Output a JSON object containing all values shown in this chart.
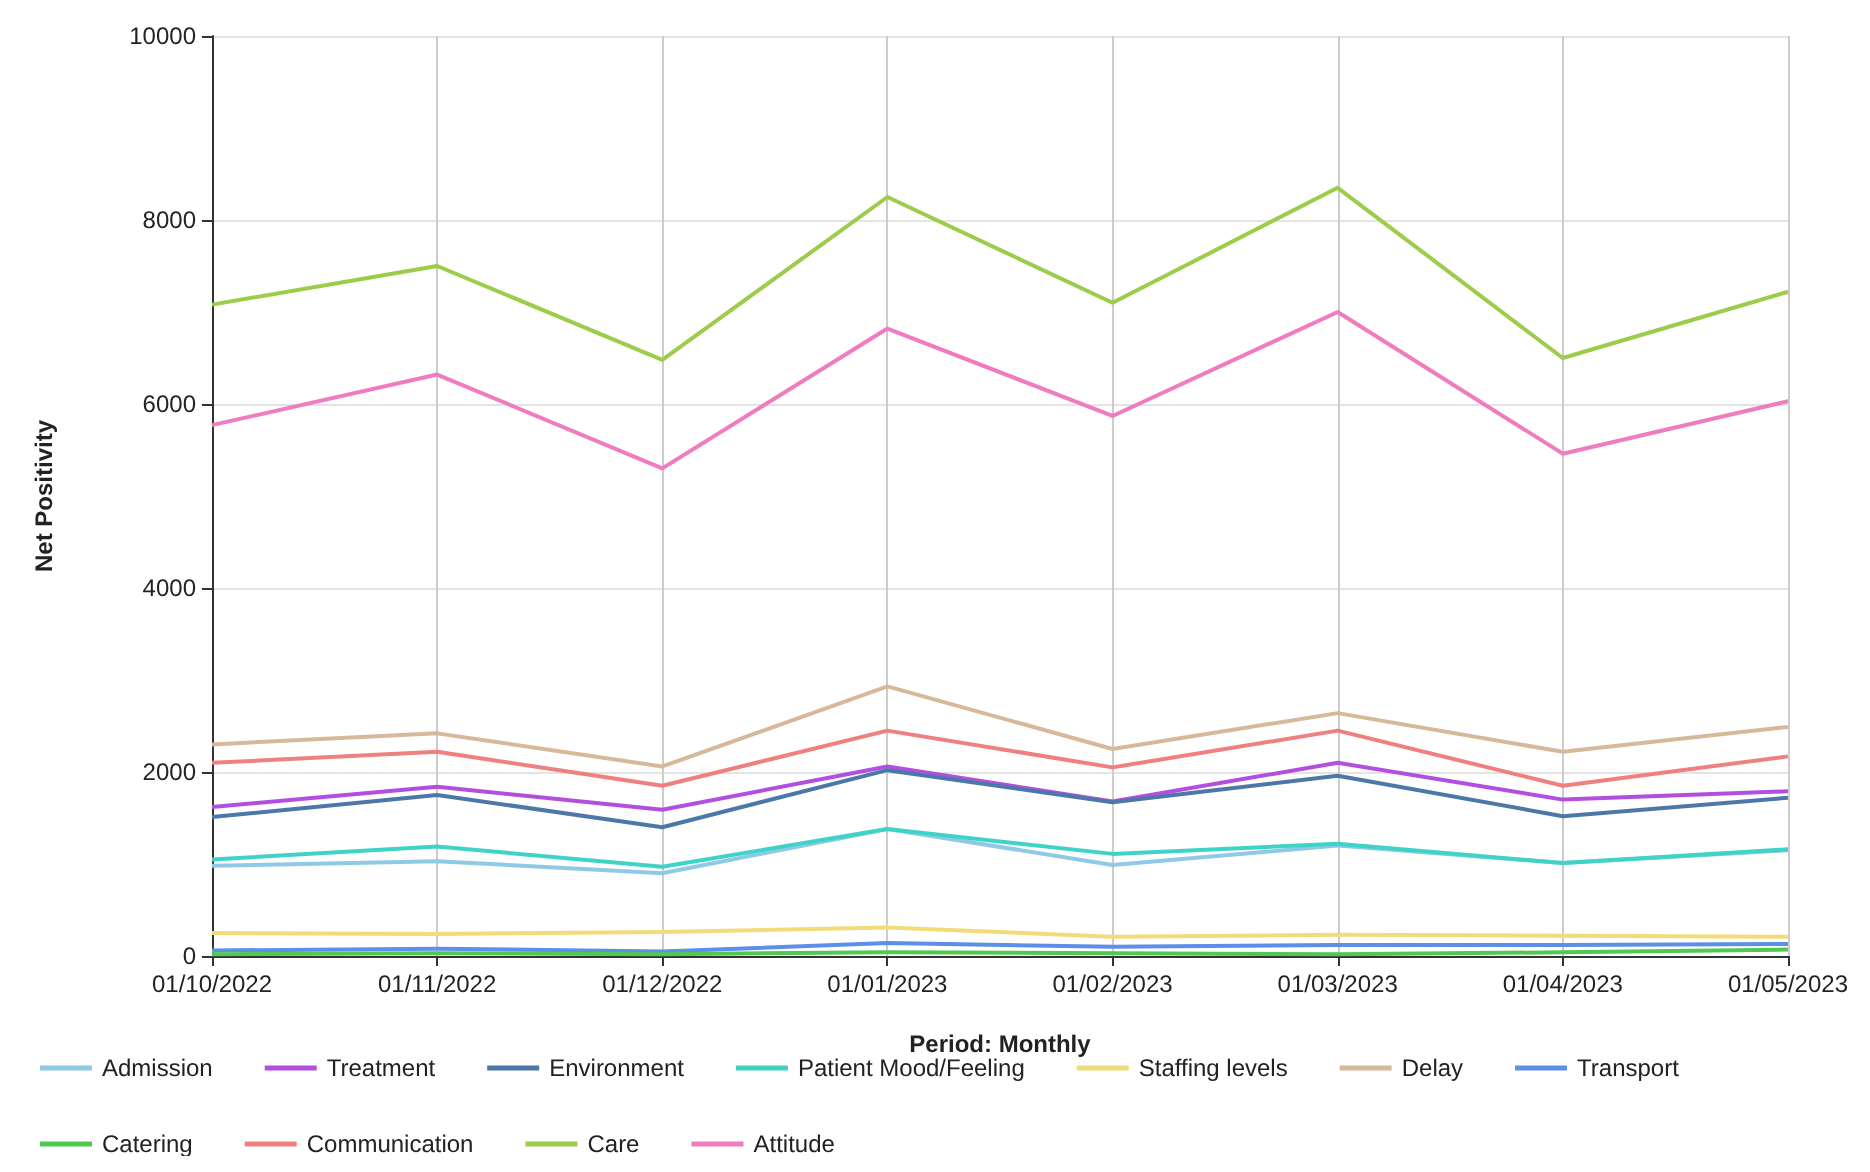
{
  "chart_data": {
    "type": "line",
    "xlabel": "Period: Monthly",
    "ylabel": "Net Positivity",
    "categories": [
      "01/10/2022",
      "01/11/2022",
      "01/12/2022",
      "01/01/2023",
      "01/02/2023",
      "01/03/2023",
      "01/04/2023",
      "01/05/2023"
    ],
    "ylim": [
      0,
      10000
    ],
    "yticks": [
      0,
      2000,
      4000,
      6000,
      8000,
      10000
    ],
    "grid": true,
    "legend": "bottom",
    "marker": "none",
    "line_style": "solid",
    "series": [
      {
        "name": "Admission",
        "color": "#8ecae6",
        "values": [
          980,
          1030,
          900,
          1380,
          990,
          1200,
          1010,
          1150
        ]
      },
      {
        "name": "Treatment",
        "color": "#b24fe0",
        "values": [
          1620,
          1840,
          1590,
          2060,
          1680,
          2100,
          1700,
          1790
        ]
      },
      {
        "name": "Environment",
        "color": "#4c78a8",
        "values": [
          1510,
          1750,
          1400,
          2020,
          1670,
          1960,
          1520,
          1720
        ]
      },
      {
        "name": "Patient Mood/Feeling",
        "color": "#3fd3c8",
        "values": [
          1050,
          1190,
          970,
          1380,
          1110,
          1220,
          1010,
          1160
        ]
      },
      {
        "name": "Staffing levels",
        "color": "#f2dc7a",
        "values": [
          250,
          240,
          260,
          310,
          210,
          230,
          220,
          210
        ]
      },
      {
        "name": "Delay",
        "color": "#d8b89a",
        "values": [
          2300,
          2420,
          2060,
          2930,
          2250,
          2640,
          2220,
          2490
        ]
      },
      {
        "name": "Transport",
        "color": "#5c8fe6",
        "values": [
          60,
          80,
          50,
          140,
          100,
          120,
          120,
          130
        ]
      },
      {
        "name": "Catering",
        "color": "#4fc94f",
        "values": [
          20,
          30,
          20,
          40,
          30,
          20,
          40,
          70
        ]
      },
      {
        "name": "Communication",
        "color": "#f08080",
        "values": [
          2100,
          2220,
          1850,
          2450,
          2050,
          2450,
          1850,
          2170
        ]
      },
      {
        "name": "Care",
        "color": "#9ccc4a",
        "values": [
          7080,
          7500,
          6480,
          8250,
          7100,
          8350,
          6500,
          7220
        ]
      },
      {
        "name": "Attitude",
        "color": "#f07cc0",
        "values": [
          5770,
          6320,
          5300,
          6820,
          5870,
          7000,
          5460,
          6030
        ]
      }
    ]
  }
}
